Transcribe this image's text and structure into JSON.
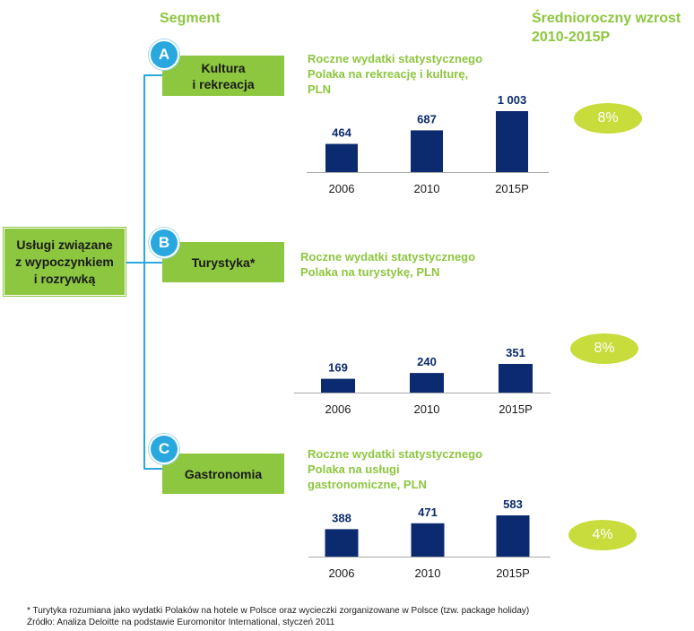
{
  "headers": {
    "segment": "Segment",
    "growth_line1": "Średnioroczny wzrost",
    "growth_line2": "2010-2015P"
  },
  "root_label": "Usługi związane\nz wypoczynkiem\ni rozrywką",
  "segments": [
    {
      "letter": "A",
      "label": "Kultura\ni rekreacja",
      "chart_title": "Roczne wydatki statystycznego\nPolaka na rekreację i kulturę,\nPLN",
      "growth": "8%"
    },
    {
      "letter": "B",
      "label": "Turystyka*",
      "chart_title": "Roczne wydatki statystycznego\nPolaka na turystykę, PLN",
      "growth": "8%"
    },
    {
      "letter": "C",
      "label": "Gastronomia",
      "chart_title": "Roczne wydatki statystycznego\nPolaka na usługi\ngastronomiczne, PLN",
      "growth": "4%"
    }
  ],
  "colors": {
    "bar": "#0b2a6f",
    "accent_green": "#8dc63f",
    "badge_blue": "#29a8e0",
    "growth_pill": "#c8dc3c"
  },
  "chart_data": [
    {
      "type": "bar",
      "title": "Roczne wydatki statystycznego Polaka na rekreację i kulturę, PLN",
      "categories": [
        "2006",
        "2010",
        "2015P"
      ],
      "values": [
        464,
        687,
        1003
      ],
      "labels": [
        "464",
        "687",
        "1 003"
      ]
    },
    {
      "type": "bar",
      "title": "Roczne wydatki statystycznego Polaka na turystykę, PLN",
      "categories": [
        "2006",
        "2010",
        "2015P"
      ],
      "values": [
        169,
        240,
        351
      ],
      "labels": [
        "169",
        "240",
        "351"
      ]
    },
    {
      "type": "bar",
      "title": "Roczne wydatki statystycznego Polaka na usługi gastronomiczne, PLN",
      "categories": [
        "2006",
        "2010",
        "2015P"
      ],
      "values": [
        388,
        471,
        583
      ],
      "labels": [
        "388",
        "471",
        "583"
      ]
    }
  ],
  "footnote": {
    "line1": "* Turytyka rozumiana jako wydatki Polaków na hotele w Polsce oraz wycieczki zorganizowane w Polsce (tzw. package holiday)",
    "line2": "Źródło: Analiza Deloitte na podstawie Euromonitor International, styczeń 2011"
  }
}
